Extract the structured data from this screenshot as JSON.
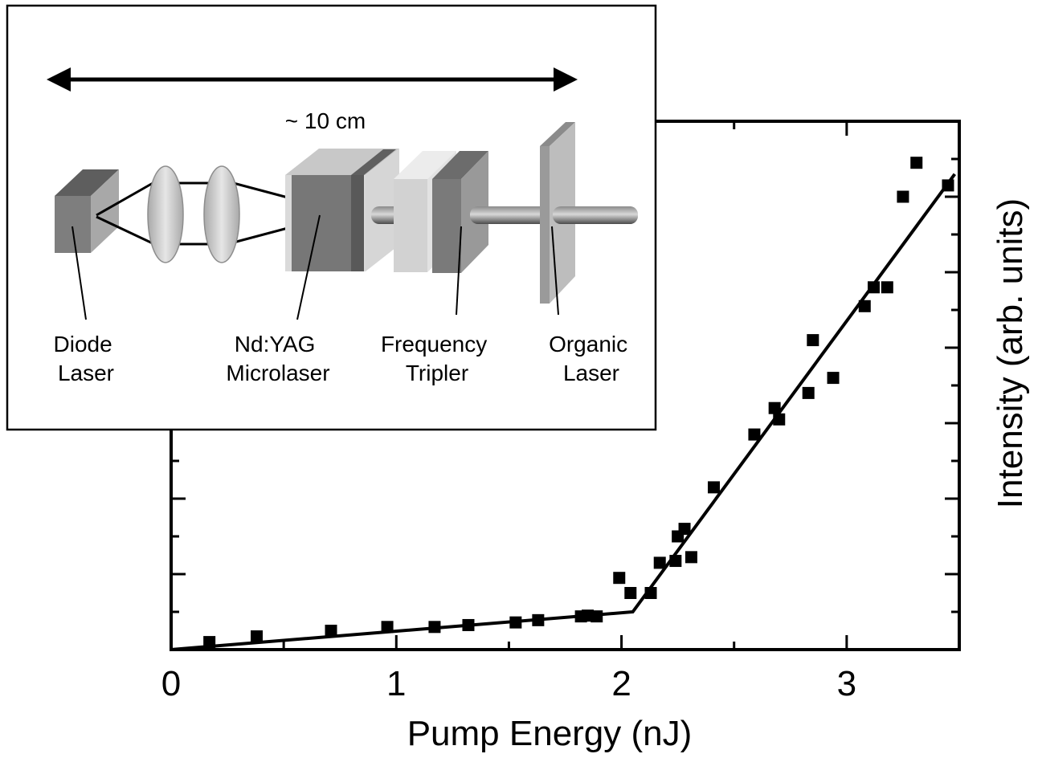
{
  "chart_data": {
    "type": "scatter",
    "title": "",
    "xlabel": "Pump Energy (nJ)",
    "ylabel": "Intensity (arb. units)",
    "xlim": [
      0,
      3.5
    ],
    "ylim": [
      0,
      14
    ],
    "x_ticks": [
      "0",
      "1",
      "2",
      "3"
    ],
    "grid": false,
    "series": [
      {
        "marker": "square",
        "color": "#000000",
        "points": [
          [
            0.17,
            0.2
          ],
          [
            0.38,
            0.35
          ],
          [
            0.71,
            0.5
          ],
          [
            0.96,
            0.6
          ],
          [
            1.17,
            0.6
          ],
          [
            1.32,
            0.65
          ],
          [
            1.53,
            0.72
          ],
          [
            1.63,
            0.78
          ],
          [
            1.82,
            0.88
          ],
          [
            1.85,
            0.9
          ],
          [
            1.89,
            0.88
          ],
          [
            1.99,
            1.9
          ],
          [
            2.04,
            1.5
          ],
          [
            2.13,
            1.5
          ],
          [
            2.17,
            2.3
          ],
          [
            2.24,
            2.35
          ],
          [
            2.25,
            3.0
          ],
          [
            2.28,
            3.2
          ],
          [
            2.31,
            2.45
          ],
          [
            2.41,
            4.3
          ],
          [
            2.59,
            5.7
          ],
          [
            2.68,
            6.4
          ],
          [
            2.7,
            6.1
          ],
          [
            2.83,
            6.8
          ],
          [
            2.85,
            8.2
          ],
          [
            2.94,
            7.2
          ],
          [
            3.08,
            9.1
          ],
          [
            3.12,
            9.6
          ],
          [
            3.18,
            9.6
          ],
          [
            3.25,
            12.0
          ],
          [
            3.31,
            12.9
          ],
          [
            3.45,
            12.3
          ]
        ]
      },
      {
        "kind": "fit-line",
        "color": "#000000",
        "points": [
          [
            0.0,
            0.0
          ],
          [
            2.05,
            1.0
          ],
          [
            3.48,
            12.6
          ]
        ]
      }
    ]
  },
  "inset": {
    "dimension_label": "~ 10 cm",
    "labels": {
      "diode_line1": "Diode",
      "diode_line2": "Laser",
      "ndyag_line1": "Nd:YAG",
      "ndyag_line2": "Microlaser",
      "tripler_line1": "Frequency",
      "tripler_line2": "Tripler",
      "organic_line1": "Organic",
      "organic_line2": "Laser"
    }
  }
}
